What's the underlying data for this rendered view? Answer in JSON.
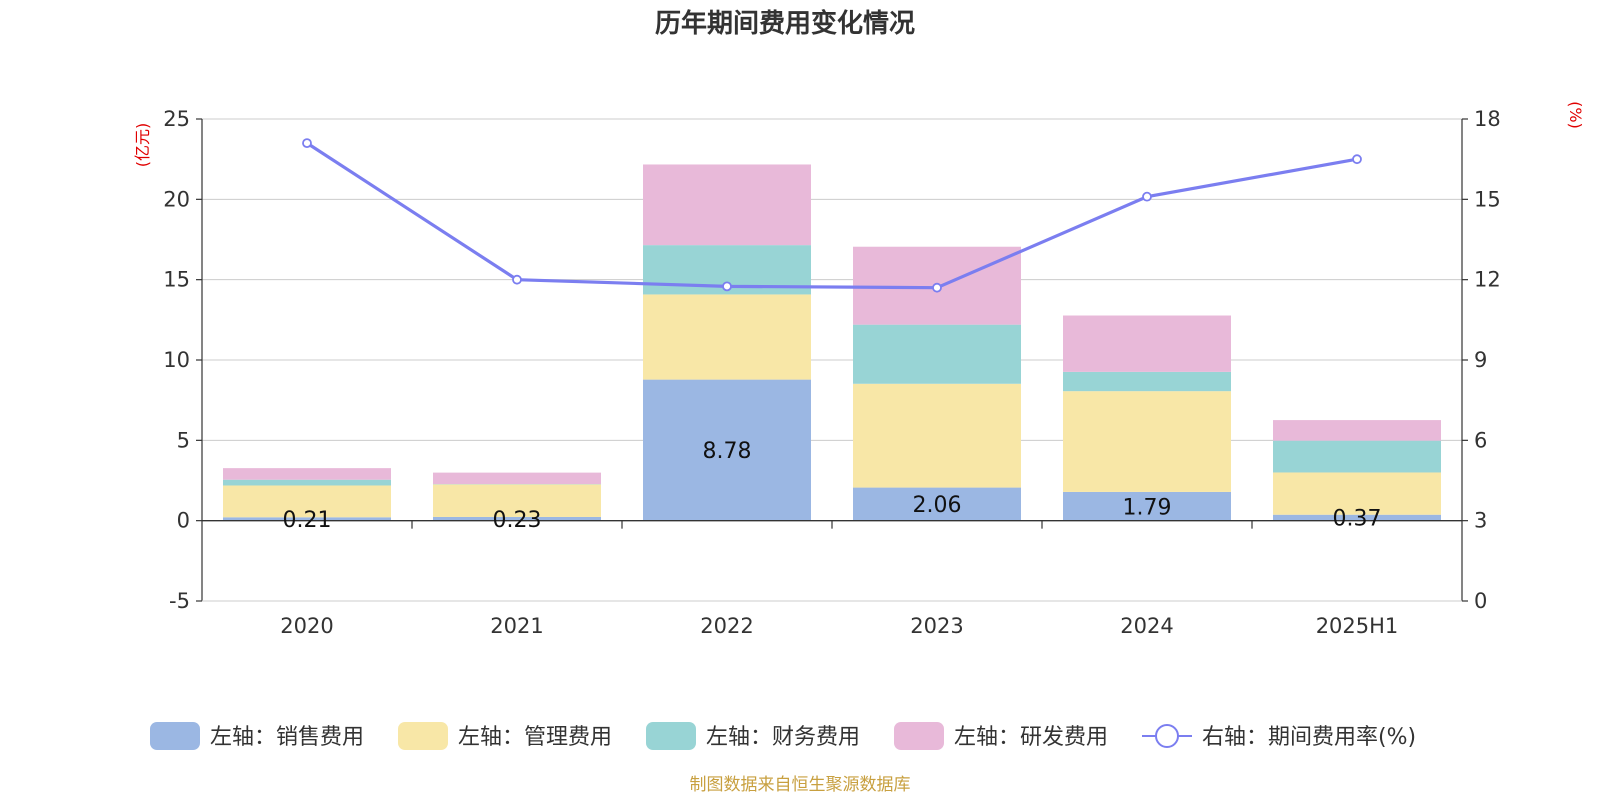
{
  "chart_data": {
    "type": "bar",
    "title": "历年期间费用变化情况",
    "categories": [
      "2020",
      "2021",
      "2022",
      "2023",
      "2024",
      "2025H1"
    ],
    "left_axis": {
      "unit": "(亿元)",
      "ylim": [
        -5,
        25
      ],
      "ticks": [
        -5,
        0,
        5,
        10,
        15,
        20,
        25
      ],
      "tick_labels": [
        "-5",
        "0",
        "5",
        "10",
        "15",
        "20",
        "25"
      ]
    },
    "right_axis": {
      "unit": "(%)",
      "ylim": [
        0,
        18
      ],
      "ticks": [
        0,
        3,
        6,
        9,
        12,
        15,
        18
      ],
      "tick_labels": [
        "0",
        "3",
        "6",
        "9",
        "12",
        "15",
        "18"
      ]
    },
    "stacked": true,
    "series": [
      {
        "name": "左轴：销售费用",
        "axis": "left",
        "color": "#9bb7e3",
        "values": [
          0.21,
          0.23,
          8.78,
          2.06,
          1.79,
          0.37
        ],
        "data_labels": [
          "0.21",
          "0.23",
          "8.78",
          "2.06",
          "1.79",
          "0.37"
        ]
      },
      {
        "name": "左轴：管理费用",
        "axis": "left",
        "color": "#f8e7a7",
        "values": [
          1.98,
          2.03,
          5.3,
          6.46,
          6.27,
          2.63
        ]
      },
      {
        "name": "左轴：财务费用",
        "axis": "left",
        "color": "#98d4d5",
        "values": [
          0.36,
          0.02,
          3.07,
          3.68,
          1.2,
          1.98
        ]
      },
      {
        "name": "左轴：研发费用",
        "axis": "left",
        "color": "#e8b9d9",
        "values": [
          0.72,
          0.71,
          5.02,
          4.85,
          3.51,
          1.28
        ]
      },
      {
        "name": "右轴：期间费用率(%)",
        "axis": "right",
        "type": "line",
        "color": "#7b7ef0",
        "values": [
          17.1,
          12.0,
          11.75,
          11.7,
          15.1,
          16.5
        ]
      }
    ],
    "grid": true,
    "legend_position": "bottom"
  },
  "source_note": "制图数据来自恒生聚源数据库"
}
